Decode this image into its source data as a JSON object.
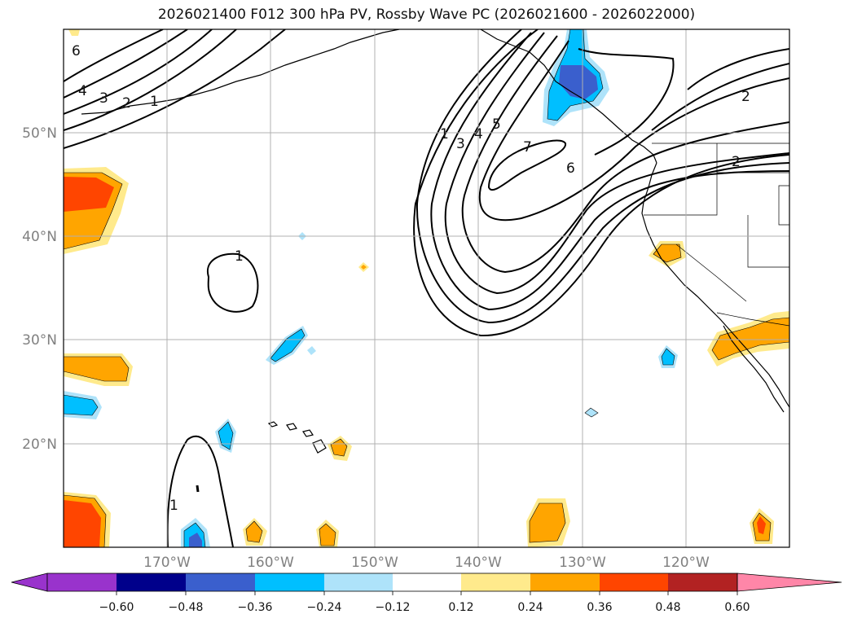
{
  "title": "2026021400 F012 300 hPa PV, Rossby Wave PC (2026021600 - 2026022000)",
  "map": {
    "lat_labels": [
      "50°N",
      "40°N",
      "30°N",
      "20°N"
    ],
    "lon_labels": [
      "170°W",
      "160°W",
      "150°W",
      "140°W",
      "130°W",
      "120°W"
    ],
    "contour_labels": [
      "6",
      "4",
      "3",
      "2",
      "1",
      "1",
      "3",
      "4",
      "5",
      "7",
      "6",
      "2",
      "2",
      "1",
      "1"
    ]
  },
  "colorbar": {
    "ticks": [
      "−0.60",
      "−0.48",
      "−0.36",
      "−0.24",
      "−0.12",
      "0.12",
      "0.24",
      "0.36",
      "0.48",
      "0.60"
    ],
    "colors": [
      "#9933cc",
      "#00008b",
      "#3a5fcd",
      "#00bfff",
      "#aee3fa",
      "#ffffff",
      "#ffea8c",
      "#ffa500",
      "#ff4500",
      "#b22222",
      "#ff86a8"
    ]
  },
  "colors": {
    "grid": "#b0b0b0",
    "contour": "#000000",
    "frame": "#000000"
  }
}
